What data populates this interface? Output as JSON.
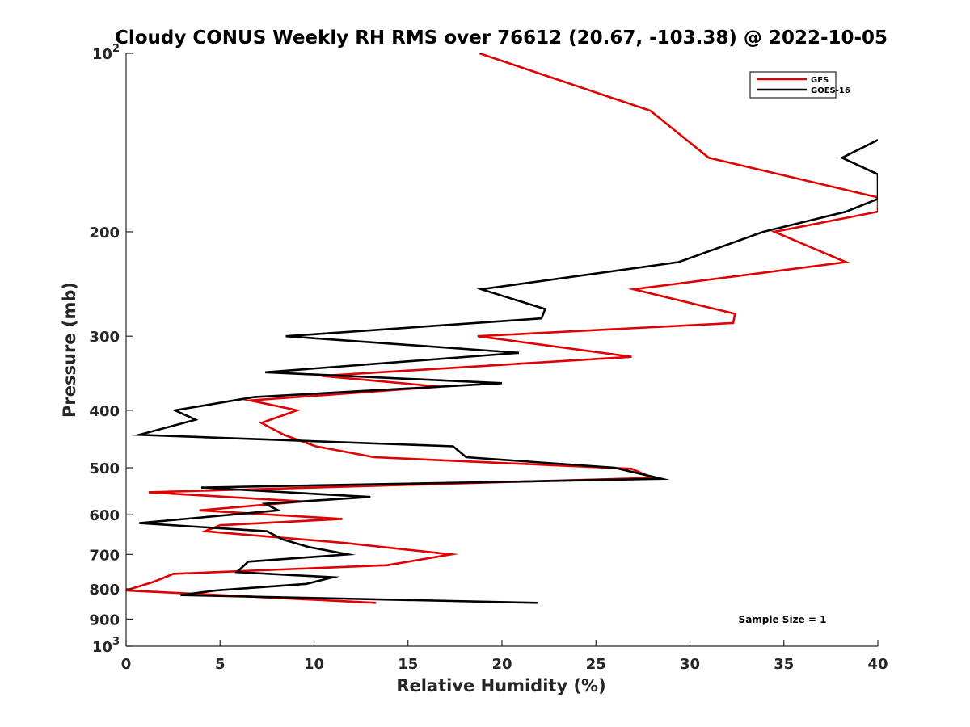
{
  "chart_data": {
    "type": "line",
    "title": "Cloudy CONUS Weekly RH RMS over 76612 (20.67, -103.38) @ 2022-10-05",
    "xlabel": "Relative Humidity (%)",
    "ylabel": "Pressure (mb)",
    "xlim": [
      0,
      40
    ],
    "ylim": [
      100,
      1000
    ],
    "yscale": "log",
    "y_reversed": true,
    "grid": false,
    "legend_position": "top-right",
    "x_ticks": [
      0,
      5,
      10,
      15,
      20,
      25,
      30,
      35,
      40
    ],
    "x_tick_labels": [
      "0",
      "5",
      "10",
      "15",
      "20",
      "25",
      "30",
      "35",
      "40"
    ],
    "y_ticks": [
      100,
      200,
      300,
      400,
      500,
      600,
      700,
      800,
      900,
      1000
    ],
    "y_tick_labels": [
      {
        "base": "10",
        "sup": "2"
      },
      {
        "base": "200",
        "sup": ""
      },
      {
        "base": "300",
        "sup": ""
      },
      {
        "base": "400",
        "sup": ""
      },
      {
        "base": "500",
        "sup": ""
      },
      {
        "base": "600",
        "sup": ""
      },
      {
        "base": "700",
        "sup": ""
      },
      {
        "base": "800",
        "sup": ""
      },
      {
        "base": "900",
        "sup": ""
      },
      {
        "base": "10",
        "sup": "3"
      }
    ],
    "annotation": "Sample Size = 1",
    "series": [
      {
        "name": "GFS",
        "color": "#e00000",
        "points": [
          [
            18.8,
            100
          ],
          [
            27.9,
            125
          ],
          [
            31.0,
            150
          ],
          [
            40.0,
            175
          ],
          [
            40.0,
            182
          ],
          [
            40.0,
            185
          ],
          [
            34.5,
            200
          ],
          [
            38.3,
            225
          ],
          [
            27.0,
            250
          ],
          [
            32.4,
            275
          ],
          [
            32.3,
            285
          ],
          [
            18.7,
            300
          ],
          [
            26.9,
            325
          ],
          [
            10.4,
            350
          ],
          [
            16.7,
            365
          ],
          [
            6.6,
            385
          ],
          [
            9.1,
            400
          ],
          [
            7.2,
            420
          ],
          [
            8.4,
            440
          ],
          [
            10.1,
            460
          ],
          [
            13.2,
            480
          ],
          [
            26.9,
            502
          ],
          [
            27.7,
            515
          ],
          [
            28.2,
            520
          ],
          [
            1.2,
            550
          ],
          [
            9.4,
            570
          ],
          [
            3.9,
            590
          ],
          [
            11.5,
            610
          ],
          [
            5.0,
            625
          ],
          [
            4.2,
            640
          ],
          [
            11.7,
            670
          ],
          [
            17.3,
            700
          ],
          [
            13.9,
            730
          ],
          [
            2.5,
            755
          ],
          [
            2.3,
            760
          ],
          [
            1.4,
            780
          ],
          [
            0.0,
            805
          ],
          [
            13.3,
            845
          ]
        ]
      },
      {
        "name": "GOES-16",
        "color": "#000000",
        "points": [
          [
            40.0,
            140
          ],
          [
            38.1,
            150
          ],
          [
            40.0,
            160
          ],
          [
            40.0,
            176
          ],
          [
            38.3,
            185
          ],
          [
            33.9,
            200
          ],
          [
            29.4,
            225
          ],
          [
            18.9,
            250
          ],
          [
            22.3,
            270
          ],
          [
            22.1,
            280
          ],
          [
            8.5,
            300
          ],
          [
            20.9,
            320
          ],
          [
            7.4,
            345
          ],
          [
            20.0,
            360
          ],
          [
            6.8,
            380
          ],
          [
            4.7,
            390
          ],
          [
            2.6,
            400
          ],
          [
            3.7,
            415
          ],
          [
            0.7,
            440
          ],
          [
            17.4,
            460
          ],
          [
            18.1,
            480
          ],
          [
            26.0,
            500
          ],
          [
            28.5,
            522
          ],
          [
            4.0,
            540
          ],
          [
            13.0,
            560
          ],
          [
            7.4,
            575
          ],
          [
            8.1,
            590
          ],
          [
            0.7,
            620
          ],
          [
            7.5,
            640
          ],
          [
            8.3,
            660
          ],
          [
            9.7,
            680
          ],
          [
            11.8,
            700
          ],
          [
            6.5,
            720
          ],
          [
            5.9,
            750
          ],
          [
            11.0,
            765
          ],
          [
            9.6,
            785
          ],
          [
            4.8,
            805
          ],
          [
            2.9,
            820
          ],
          [
            21.9,
            845
          ]
        ]
      }
    ]
  }
}
